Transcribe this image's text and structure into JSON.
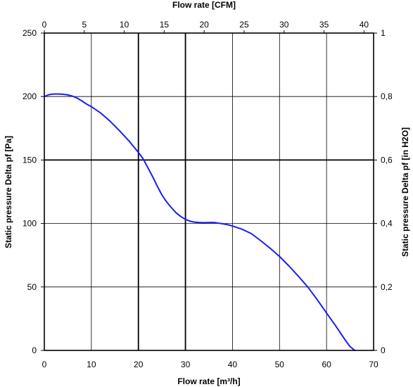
{
  "chart_data": {
    "type": "line",
    "title": "",
    "xlabel": "Flow rate [m³/h]",
    "ylabel": "Static pressure Delta pf [Pa]",
    "x2label": "Flow rate [CFM]",
    "y2label": "Static pressure Delta pf [in H2O]",
    "xlim": [
      0,
      70
    ],
    "ylim": [
      0,
      250
    ],
    "x2lim": [
      0,
      41.2
    ],
    "y2lim": [
      0,
      1.0
    ],
    "x_ticks": [
      "0",
      "10",
      "20",
      "30",
      "40",
      "50",
      "60",
      "70"
    ],
    "y_ticks": [
      "0",
      "50",
      "100",
      "150",
      "200",
      "250"
    ],
    "x2_ticks": [
      {
        "value": 0,
        "label": "0"
      },
      {
        "value": 5,
        "label": "5"
      },
      {
        "value": 10,
        "label": "10"
      },
      {
        "value": 15,
        "label": "15"
      },
      {
        "value": 20,
        "label": "20"
      },
      {
        "value": 25,
        "label": "25"
      },
      {
        "value": 30,
        "label": "30"
      },
      {
        "value": 35,
        "label": "35"
      },
      {
        "value": 40,
        "label": "40"
      }
    ],
    "y2_ticks": [
      {
        "value": 0,
        "label": "0"
      },
      {
        "value": 0.2,
        "label": "0,2"
      },
      {
        "value": 0.4,
        "label": "0,4"
      },
      {
        "value": 0.6,
        "label": "0,6"
      },
      {
        "value": 0.8,
        "label": "0,8"
      },
      {
        "value": 1,
        "label": "1"
      }
    ],
    "grid": true,
    "bold_gridlines": {
      "x_m3h": [
        20,
        30
      ],
      "y_pa": [
        150
      ]
    },
    "series": [
      {
        "color": "#1a1aff",
        "x": [
          0,
          1,
          2,
          3,
          4,
          5,
          6,
          7,
          8,
          9,
          10,
          12,
          14,
          16,
          18,
          20,
          21,
          22,
          23,
          24,
          25,
          26,
          27,
          28,
          29,
          30,
          31,
          32,
          33,
          34,
          35,
          36,
          37,
          38,
          39,
          40,
          42,
          44,
          46,
          48,
          50,
          52,
          54,
          56,
          58,
          60,
          62,
          64,
          65,
          66
        ],
        "y": [
          200,
          201.5,
          202,
          202,
          201.8,
          201.3,
          200.3,
          198.7,
          196.5,
          194,
          192,
          187,
          180.5,
          173,
          165,
          156,
          151,
          144,
          137,
          129.5,
          122.5,
          117,
          112.5,
          108.5,
          105.5,
          103.2,
          101.8,
          101,
          100.7,
          100.6,
          100.8,
          100.7,
          100.3,
          99.7,
          99,
          98,
          95.5,
          92,
          86.5,
          80.5,
          74,
          66.5,
          58.5,
          50,
          40,
          29.5,
          19,
          8,
          3,
          0
        ]
      }
    ]
  }
}
